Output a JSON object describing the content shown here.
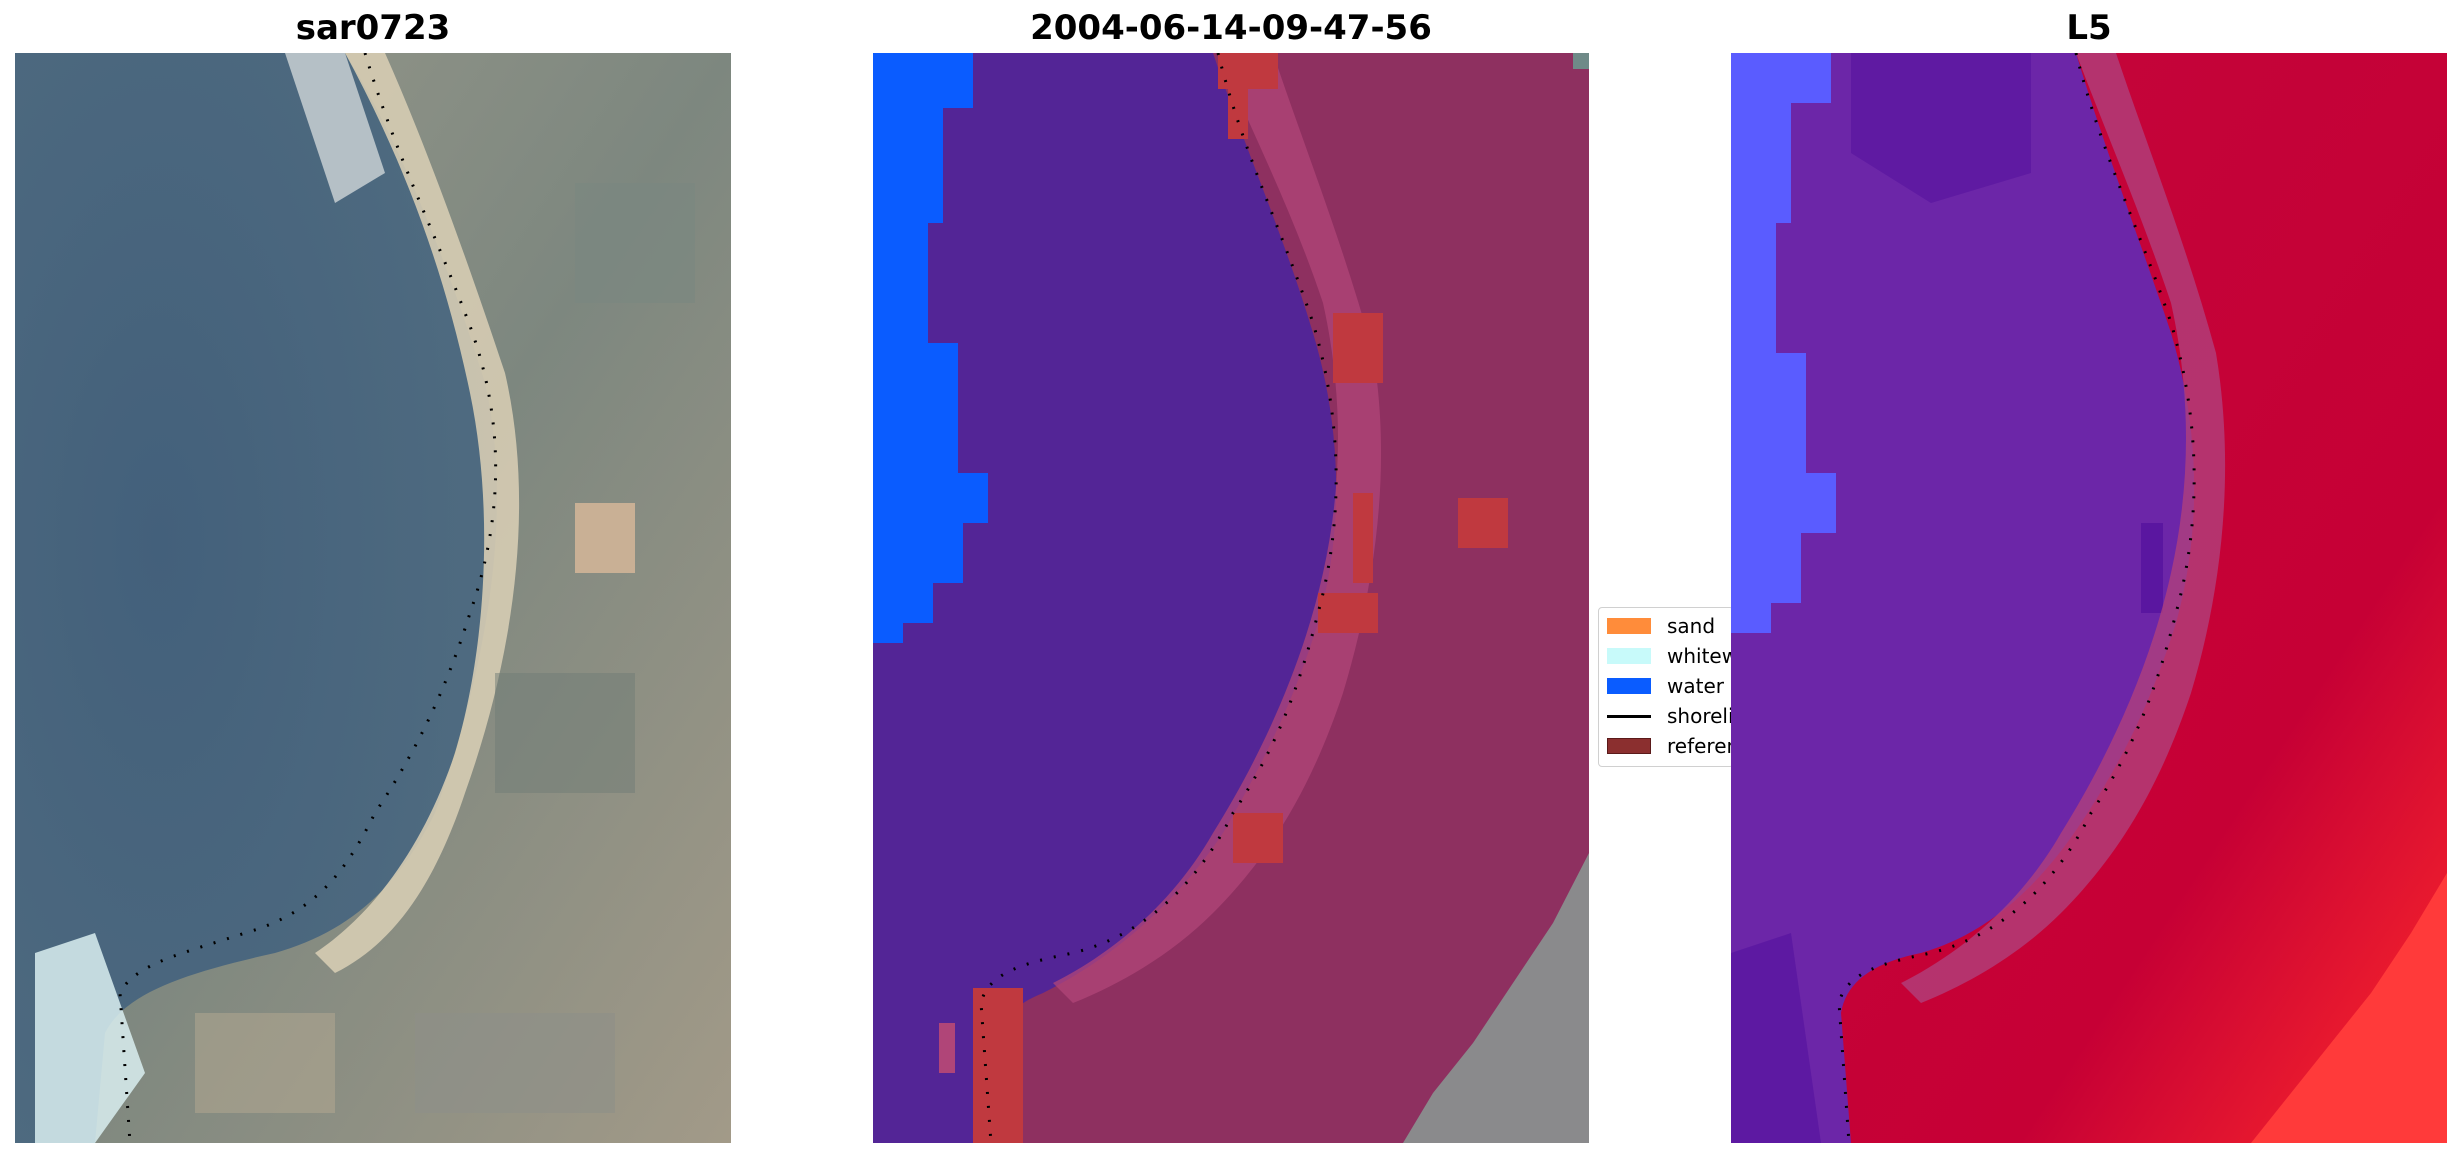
{
  "panels": [
    {
      "title": "sar0723",
      "kind": "rgb-image"
    },
    {
      "title": "2004-06-14-09-47-56",
      "kind": "classified-overlay"
    },
    {
      "title": "L5",
      "kind": "probability-map"
    }
  ],
  "legend": {
    "items": [
      {
        "label": "sand",
        "color": "#ff8c3a",
        "type": "patch"
      },
      {
        "label": "whitewater",
        "color": "#c8fafa",
        "type": "patch"
      },
      {
        "label": "water",
        "color": "#0a5cff",
        "type": "patch"
      },
      {
        "label": "shoreline",
        "color": "#000000",
        "type": "line"
      },
      {
        "label": "reference",
        "color": "#8b2f2f",
        "type": "patch"
      }
    ]
  },
  "colors": {
    "water_deep": "#4a6580",
    "sand_light": "#d8cdb0",
    "land_grey": "#8c8f86",
    "class_water": "#0a5cff",
    "class_sea": "#532596",
    "class_land": "#8e3060",
    "class_sand_highlight": "#b04578",
    "class_reference": "#c0393f",
    "prob_low": "#6a1fa8",
    "prob_high": "#c8003a",
    "prob_blue": "#5a5cff",
    "prob_red_edge": "#ff2a2a"
  }
}
